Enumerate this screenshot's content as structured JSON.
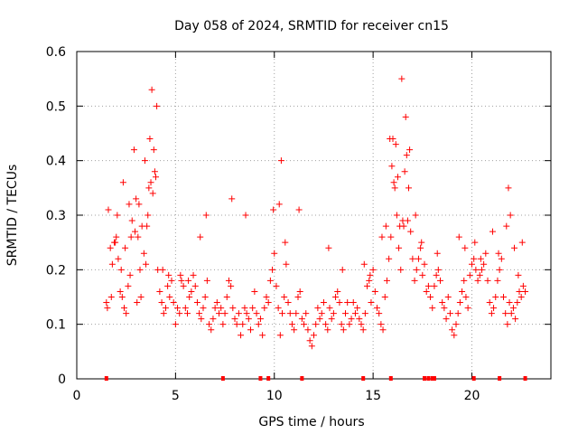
{
  "chart_data": {
    "type": "scatter",
    "title": "Day 058 of 2024, SRMTID for receiver cn15",
    "xlabel": "GPS time / hours",
    "ylabel": "SRMTID / TECUs",
    "xlim": [
      0,
      24
    ],
    "ylim": [
      0,
      0.6
    ],
    "xticks": [
      0,
      5,
      10,
      15,
      20
    ],
    "yticks": [
      0,
      0.1,
      0.2,
      0.3,
      0.4,
      0.5,
      0.6
    ],
    "xtick_labels": [
      "0",
      "5",
      "10",
      "15",
      "20"
    ],
    "ytick_labels": [
      "0",
      "0.1",
      "0.2",
      "0.3",
      "0.4",
      "0.5",
      "0.6"
    ],
    "grid": true,
    "marker": "+",
    "color": "#ff0000",
    "series": [
      {
        "name": "SRMTID",
        "x": [
          1.5,
          1.6,
          1.7,
          1.8,
          1.9,
          2.0,
          2.1,
          2.2,
          2.3,
          2.4,
          2.5,
          2.6,
          2.7,
          2.8,
          2.9,
          3.0,
          3.1,
          3.2,
          3.3,
          3.4,
          3.5,
          3.6,
          3.7,
          3.8,
          3.9,
          4.0,
          4.1,
          4.2,
          4.3,
          4.4,
          4.5,
          4.6,
          4.7,
          4.8,
          4.9,
          5.0,
          5.1,
          5.2,
          5.3,
          5.4,
          5.5,
          5.6,
          5.7,
          5.8,
          5.9,
          6.0,
          6.1,
          6.2,
          6.3,
          6.4,
          6.5,
          6.6,
          6.7,
          6.8,
          6.9,
          7.0,
          7.1,
          7.2,
          7.3,
          7.4,
          7.5,
          7.6,
          7.7,
          7.8,
          7.9,
          8.0,
          8.1,
          8.2,
          8.3,
          8.4,
          8.5,
          8.6,
          8.7,
          8.8,
          8.9,
          9.0,
          9.1,
          9.2,
          9.3,
          9.4,
          9.5,
          9.6,
          9.7,
          9.8,
          9.9,
          10.0,
          10.1,
          10.2,
          10.3,
          10.4,
          10.5,
          10.6,
          10.7,
          10.8,
          10.9,
          11.0,
          11.1,
          11.2,
          11.3,
          11.4,
          11.5,
          11.6,
          11.7,
          11.8,
          11.9,
          12.0,
          12.1,
          12.2,
          12.3,
          12.4,
          12.5,
          12.6,
          12.7,
          12.8,
          12.9,
          13.0,
          13.1,
          13.2,
          13.3,
          13.4,
          13.5,
          13.6,
          13.7,
          13.8,
          13.9,
          14.0,
          14.1,
          14.2,
          14.3,
          14.4,
          14.5,
          14.6,
          14.7,
          14.8,
          14.9,
          15.0,
          15.1,
          15.2,
          15.3,
          15.4,
          15.5,
          15.6,
          15.7,
          15.8,
          15.9,
          16.0,
          16.1,
          16.2,
          16.3,
          16.4,
          16.5,
          16.6,
          16.7,
          16.8,
          16.9,
          17.0,
          17.1,
          17.2,
          17.3,
          17.4,
          17.5,
          17.6,
          17.7,
          17.8,
          17.9,
          18.0,
          18.1,
          18.2,
          18.3,
          18.4,
          18.5,
          18.6,
          18.7,
          18.8,
          18.9,
          19.0,
          19.1,
          19.2,
          19.3,
          19.4,
          19.5,
          19.6,
          19.7,
          19.8,
          19.9,
          20.0,
          20.1,
          20.2,
          20.3,
          20.4,
          20.5,
          20.6,
          20.7,
          20.8,
          20.9,
          21.0,
          21.1,
          21.2,
          21.3,
          21.4,
          21.5,
          21.6,
          21.7,
          21.8,
          21.9,
          22.0,
          22.1,
          22.2,
          22.3,
          22.4,
          22.5,
          22.6,
          22.7,
          1.55,
          1.75,
          2.05,
          2.25,
          2.45,
          2.75,
          3.05,
          3.25,
          3.45,
          3.65,
          3.85,
          3.95,
          4.05,
          3.75,
          3.55,
          3.15,
          2.95,
          2.65,
          2.35,
          1.95,
          4.35,
          4.65,
          5.25,
          5.65,
          6.25,
          6.55,
          7.85,
          8.55,
          9.95,
          10.25,
          10.35,
          10.55,
          11.25,
          12.75,
          13.45,
          14.55,
          14.85,
          15.45,
          15.65,
          15.85,
          16.05,
          16.15,
          16.25,
          16.45,
          16.65,
          16.85,
          15.95,
          16.35,
          16.55,
          16.75,
          17.15,
          17.45,
          18.25,
          19.35,
          19.65,
          20.15,
          20.45,
          21.05,
          21.35,
          21.75,
          21.85,
          21.95,
          22.15,
          22.35,
          22.55
        ],
        "y": [
          0.14,
          0.31,
          0.24,
          0.21,
          0.25,
          0.26,
          0.22,
          0.16,
          0.15,
          0.13,
          0.12,
          0.17,
          0.19,
          0.29,
          0.42,
          0.33,
          0.26,
          0.2,
          0.28,
          0.23,
          0.21,
          0.3,
          0.44,
          0.53,
          0.42,
          0.37,
          0.2,
          0.16,
          0.14,
          0.12,
          0.13,
          0.17,
          0.15,
          0.18,
          0.14,
          0.1,
          0.13,
          0.12,
          0.18,
          0.17,
          0.13,
          0.12,
          0.15,
          0.16,
          0.19,
          0.17,
          0.14,
          0.12,
          0.11,
          0.13,
          0.15,
          0.18,
          0.1,
          0.09,
          0.11,
          0.13,
          0.14,
          0.12,
          0.13,
          0.1,
          0.12,
          0.15,
          0.18,
          0.17,
          0.13,
          0.11,
          0.1,
          0.12,
          0.08,
          0.1,
          0.13,
          0.12,
          0.11,
          0.09,
          0.13,
          0.16,
          0.12,
          0.1,
          0.11,
          0.08,
          0.13,
          0.15,
          0.14,
          0.18,
          0.2,
          0.23,
          0.17,
          0.13,
          0.08,
          0.12,
          0.15,
          0.21,
          0.14,
          0.12,
          0.1,
          0.09,
          0.12,
          0.15,
          0.16,
          0.11,
          0.1,
          0.12,
          0.09,
          0.07,
          0.06,
          0.08,
          0.1,
          0.13,
          0.11,
          0.12,
          0.14,
          0.1,
          0.09,
          0.13,
          0.11,
          0.12,
          0.15,
          0.16,
          0.14,
          0.1,
          0.09,
          0.12,
          0.14,
          0.1,
          0.11,
          0.14,
          0.12,
          0.13,
          0.11,
          0.1,
          0.09,
          0.12,
          0.17,
          0.18,
          0.14,
          0.2,
          0.16,
          0.13,
          0.12,
          0.1,
          0.09,
          0.15,
          0.18,
          0.22,
          0.26,
          0.44,
          0.35,
          0.3,
          0.24,
          0.2,
          0.29,
          0.38,
          0.41,
          0.35,
          0.27,
          0.22,
          0.18,
          0.2,
          0.22,
          0.24,
          0.19,
          0.21,
          0.16,
          0.17,
          0.15,
          0.13,
          0.17,
          0.19,
          0.2,
          0.18,
          0.14,
          0.13,
          0.11,
          0.15,
          0.12,
          0.09,
          0.08,
          0.1,
          0.12,
          0.14,
          0.16,
          0.18,
          0.15,
          0.13,
          0.19,
          0.21,
          0.22,
          0.2,
          0.18,
          0.19,
          0.2,
          0.21,
          0.23,
          0.18,
          0.14,
          0.12,
          0.13,
          0.15,
          0.18,
          0.2,
          0.22,
          0.15,
          0.12,
          0.1,
          0.14,
          0.12,
          0.13,
          0.11,
          0.14,
          0.16,
          0.15,
          0.17,
          0.16,
          0.13,
          0.15,
          0.3,
          0.2,
          0.24,
          0.26,
          0.14,
          0.15,
          0.4,
          0.35,
          0.34,
          0.38,
          0.5,
          0.36,
          0.28,
          0.32,
          0.27,
          0.32,
          0.36,
          0.25,
          0.2,
          0.19,
          0.19,
          0.18,
          0.26,
          0.3,
          0.33,
          0.3,
          0.31,
          0.32,
          0.4,
          0.25,
          0.31,
          0.24,
          0.2,
          0.21,
          0.19,
          0.26,
          0.28,
          0.44,
          0.36,
          0.43,
          0.37,
          0.55,
          0.48,
          0.42,
          0.39,
          0.28,
          0.28,
          0.29,
          0.3,
          0.25,
          0.23,
          0.26,
          0.24,
          0.25,
          0.22,
          0.27,
          0.23,
          0.28,
          0.35,
          0.3,
          0.24,
          0.19,
          0.25
        ]
      }
    ],
    "bottom_markers_x": [
      1.5,
      7.4,
      9.3,
      9.7,
      11.4,
      14.5,
      15.9,
      17.6,
      17.8,
      18.0,
      18.1,
      20.1,
      21.4,
      22.7
    ]
  }
}
